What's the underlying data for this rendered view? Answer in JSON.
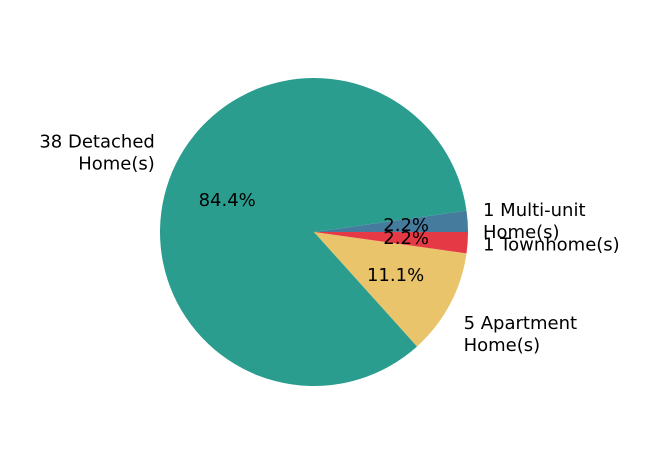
{
  "chart_data": {
    "type": "pie",
    "start_angle_deg": 0,
    "direction": "counterclockwise",
    "slices": [
      {
        "label_lines": [
          "1 Multi-unit",
          "Home(s)"
        ],
        "value": 1,
        "pct_label": "2.2%",
        "color": "#457b9d"
      },
      {
        "label_lines": [
          "38 Detached",
          "Home(s)"
        ],
        "value": 38,
        "pct_label": "84.4%",
        "color": "#2a9d8f"
      },
      {
        "label_lines": [
          "5 Apartment",
          "Home(s)"
        ],
        "value": 5,
        "pct_label": "11.1%",
        "color": "#e9c46a"
      },
      {
        "label_lines": [
          "1 Townhome(s)"
        ],
        "value": 1,
        "pct_label": "2.2%",
        "color": "#e63946"
      }
    ],
    "draw_order": [
      1,
      0,
      3,
      2
    ]
  }
}
